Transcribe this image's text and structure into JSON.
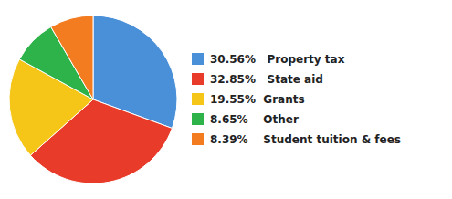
{
  "chart_data": {
    "type": "pie",
    "categories": [
      "30.56%   Property tax",
      "32.85%   State aid",
      "19.55%  Grants",
      "8.65%    Other",
      "8.39%    Student tuition & fees"
    ],
    "values": [
      30.56,
      32.85,
      19.55,
      8.65,
      8.39
    ],
    "colors": [
      "#4a90d9",
      "#e83b2a",
      "#f5c518",
      "#2db34a",
      "#f47c20"
    ],
    "legend": "right"
  }
}
